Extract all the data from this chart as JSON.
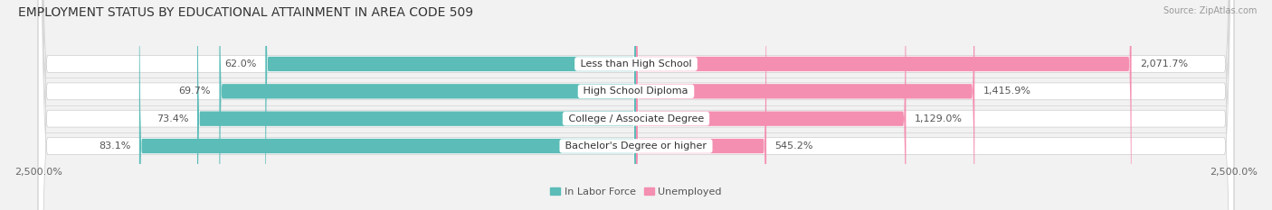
{
  "title": "EMPLOYMENT STATUS BY EDUCATIONAL ATTAINMENT IN AREA CODE 509",
  "source": "Source: ZipAtlas.com",
  "categories": [
    "Less than High School",
    "High School Diploma",
    "College / Associate Degree",
    "Bachelor's Degree or higher"
  ],
  "in_labor_force_pct": [
    62.0,
    69.7,
    73.4,
    83.1
  ],
  "unemployed_values": [
    2071.7,
    1415.9,
    1129.0,
    545.2
  ],
  "in_labor_force_color": "#5bbcb8",
  "unemployed_color": "#f48fb1",
  "background_color": "#f2f2f2",
  "bar_bg_color": "#e4e4e4",
  "axis_max": 2500.0,
  "legend_labels": [
    "In Labor Force",
    "Unemployed"
  ],
  "title_fontsize": 10,
  "label_fontsize": 8,
  "source_fontsize": 7
}
